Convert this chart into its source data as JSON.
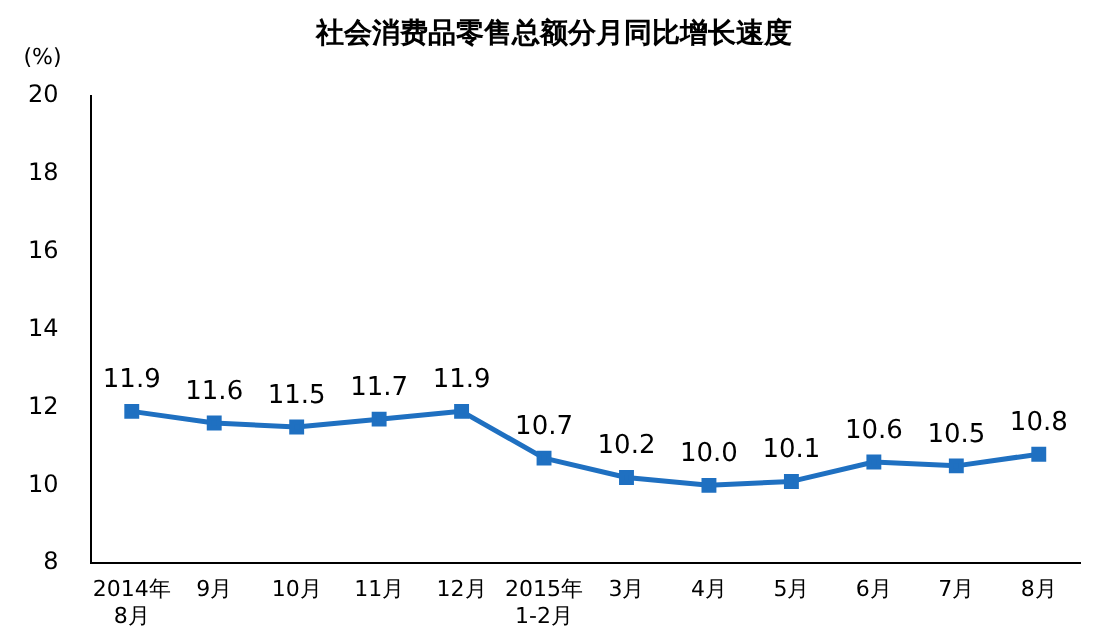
{
  "chart_data": {
    "type": "line",
    "title": "社会消费品零售总额分月同比增长速度",
    "ylabel": "(%)",
    "categories": [
      "2014年\n8月",
      "9月",
      "10月",
      "11月",
      "12月",
      "2015年\n1-2月",
      "3月",
      "4月",
      "5月",
      "6月",
      "7月",
      "8月"
    ],
    "series": [
      {
        "color": "#1f70c1",
        "values": [
          11.9,
          11.6,
          11.5,
          11.7,
          11.9,
          10.7,
          10.2,
          10.0,
          10.1,
          10.6,
          10.5,
          10.8
        ],
        "value_labels": [
          "11.9",
          "11.6",
          "11.5",
          "11.7",
          "11.9",
          "10.7",
          "10.2",
          "10.0",
          "10.1",
          "10.6",
          "10.5",
          "10.8"
        ]
      }
    ],
    "ylim": [
      8,
      20
    ],
    "yticks": [
      8,
      10,
      12,
      14,
      16,
      18,
      20
    ],
    "grid": false,
    "legend": false,
    "marker": "square",
    "line_style": "solid"
  }
}
